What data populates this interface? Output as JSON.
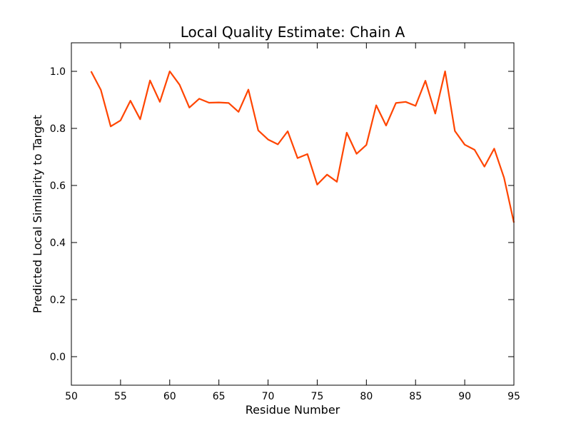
{
  "chart_data": {
    "type": "line",
    "title": "Local Quality Estimate: Chain A",
    "xlabel": "Residue Number",
    "ylabel": "Predicted Local Similarity to Target",
    "xlim": [
      50,
      95
    ],
    "ylim": [
      -0.1,
      1.1
    ],
    "grid": false,
    "legend": "none",
    "line_color": "#ff4500",
    "x_ticks": [
      50,
      55,
      60,
      65,
      70,
      75,
      80,
      85,
      90,
      95
    ],
    "x_tick_labels": [
      "50",
      "55",
      "60",
      "65",
      "70",
      "75",
      "80",
      "85",
      "90",
      "95"
    ],
    "y_ticks": [
      0.0,
      0.2,
      0.4,
      0.6,
      0.8,
      1.0
    ],
    "y_tick_labels": [
      "0.0",
      "0.2",
      "0.4",
      "0.6",
      "0.8",
      "1.0"
    ],
    "series": [
      {
        "x": [
          52,
          53,
          54,
          55,
          56,
          57,
          58,
          59,
          60,
          61,
          62,
          63,
          64,
          65,
          66,
          67,
          68,
          69,
          70,
          71,
          72,
          73,
          74,
          75,
          76,
          77,
          78,
          79,
          80,
          81,
          82,
          83,
          84,
          85,
          86,
          87,
          88,
          89,
          90,
          91,
          92,
          93,
          94,
          95
        ],
        "y": [
          1.0,
          0.935,
          0.807,
          0.828,
          0.897,
          0.832,
          0.968,
          0.893,
          1.0,
          0.953,
          0.873,
          0.904,
          0.89,
          0.891,
          0.889,
          0.858,
          0.936,
          0.793,
          0.761,
          0.744,
          0.79,
          0.696,
          0.71,
          0.603,
          0.638,
          0.613,
          0.785,
          0.711,
          0.742,
          0.881,
          0.81,
          0.889,
          0.893,
          0.879,
          0.967,
          0.852,
          1.0,
          0.791,
          0.743,
          0.725,
          0.666,
          0.729,
          0.627,
          0.47
        ]
      }
    ]
  }
}
